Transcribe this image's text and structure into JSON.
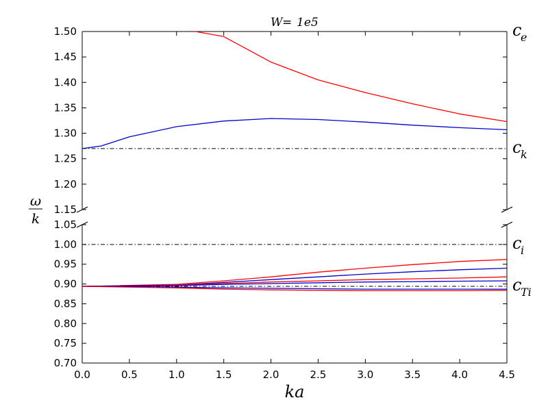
{
  "chart_data": {
    "type": "line",
    "title": "W = 1e5",
    "title_parts": {
      "var": "W",
      "op": " = ",
      "value": "1e5"
    },
    "xlabel": "ka",
    "ylabel": {
      "numerator": "ω",
      "denominator": "k"
    },
    "xlim": [
      0.0,
      4.5
    ],
    "x_ticks": [
      "0.0",
      "0.5",
      "1.0",
      "1.5",
      "2.0",
      "2.5",
      "3.0",
      "3.5",
      "4.0",
      "4.5"
    ],
    "axis_break": true,
    "panels": [
      {
        "id": "upper",
        "ylim": [
          1.15,
          1.5
        ],
        "y_ticks": [
          "1.15",
          "1.20",
          "1.25",
          "1.30",
          "1.35",
          "1.40",
          "1.45",
          "1.50"
        ],
        "reference_lines": [
          {
            "label_main": "c",
            "label_sub": "e",
            "y": 1.5,
            "style": "dashdot"
          },
          {
            "label_main": "c",
            "label_sub": "k",
            "y": 1.27,
            "style": "dashdot"
          }
        ],
        "series": [
          {
            "color": "#ff0000",
            "points": [
              [
                1.2,
                1.5
              ],
              [
                1.5,
                1.49
              ],
              [
                2.0,
                1.44
              ],
              [
                2.5,
                1.405
              ],
              [
                3.0,
                1.38
              ],
              [
                3.5,
                1.358
              ],
              [
                4.0,
                1.338
              ],
              [
                4.5,
                1.323
              ]
            ]
          },
          {
            "color": "#0000cc",
            "points": [
              [
                0.0,
                1.27
              ],
              [
                0.2,
                1.275
              ],
              [
                0.5,
                1.293
              ],
              [
                1.0,
                1.313
              ],
              [
                1.5,
                1.324
              ],
              [
                2.0,
                1.329
              ],
              [
                2.5,
                1.327
              ],
              [
                3.0,
                1.322
              ],
              [
                3.5,
                1.316
              ],
              [
                4.0,
                1.311
              ],
              [
                4.5,
                1.307
              ]
            ]
          }
        ]
      },
      {
        "id": "lower",
        "ylim": [
          0.7,
          1.05
        ],
        "y_ticks": [
          "0.70",
          "0.75",
          "0.80",
          "0.85",
          "0.90",
          "0.95",
          "1.00",
          "1.05"
        ],
        "reference_lines": [
          {
            "label_main": "c",
            "label_sub": "i",
            "y": 1.0,
            "style": "dashdot"
          },
          {
            "label_main": "c",
            "label_sub": "Ti",
            "y": 0.894,
            "style": "dashdot"
          }
        ],
        "series": [
          {
            "color": "#ff0000",
            "points": [
              [
                0.4,
                0.896
              ],
              [
                1.0,
                0.899
              ],
              [
                1.5,
                0.908
              ],
              [
                2.0,
                0.918
              ],
              [
                2.5,
                0.93
              ],
              [
                3.0,
                0.94
              ],
              [
                3.5,
                0.949
              ],
              [
                4.0,
                0.957
              ],
              [
                4.5,
                0.962
              ]
            ]
          },
          {
            "color": "#0000cc",
            "points": [
              [
                0.0,
                0.894
              ],
              [
                1.0,
                0.897
              ],
              [
                1.5,
                0.904
              ],
              [
                2.0,
                0.911
              ],
              [
                2.5,
                0.918
              ],
              [
                3.0,
                0.925
              ],
              [
                3.5,
                0.931
              ],
              [
                4.0,
                0.936
              ],
              [
                4.5,
                0.94
              ]
            ]
          },
          {
            "color": "#ff0000",
            "points": [
              [
                0.0,
                0.894
              ],
              [
                1.0,
                0.897
              ],
              [
                1.5,
                0.901
              ],
              [
                2.0,
                0.905
              ],
              [
                2.5,
                0.908
              ],
              [
                3.0,
                0.911
              ],
              [
                3.5,
                0.913
              ],
              [
                4.0,
                0.915
              ],
              [
                4.5,
                0.918
              ]
            ]
          },
          {
            "color": "#0000cc",
            "points": [
              [
                0.0,
                0.894
              ],
              [
                1.0,
                0.896
              ],
              [
                1.5,
                0.899
              ],
              [
                2.0,
                0.901
              ],
              [
                2.5,
                0.903
              ],
              [
                3.0,
                0.905
              ],
              [
                3.5,
                0.906
              ],
              [
                4.0,
                0.907
              ],
              [
                4.5,
                0.908
              ]
            ]
          },
          {
            "color": "#0000cc",
            "points": [
              [
                0.0,
                0.894
              ],
              [
                1.0,
                0.892
              ],
              [
                1.5,
                0.89
              ],
              [
                2.0,
                0.889
              ],
              [
                2.5,
                0.888
              ],
              [
                3.0,
                0.887
              ],
              [
                3.5,
                0.887
              ],
              [
                4.0,
                0.887
              ],
              [
                4.5,
                0.887
              ]
            ]
          },
          {
            "color": "#ff0000",
            "points": [
              [
                0.0,
                0.894
              ],
              [
                1.0,
                0.89
              ],
              [
                1.5,
                0.887
              ],
              [
                2.0,
                0.885
              ],
              [
                2.5,
                0.884
              ],
              [
                3.0,
                0.883
              ],
              [
                3.5,
                0.883
              ],
              [
                4.0,
                0.883
              ],
              [
                4.5,
                0.884
              ]
            ]
          }
        ]
      }
    ],
    "grid": false,
    "legend": "none"
  }
}
